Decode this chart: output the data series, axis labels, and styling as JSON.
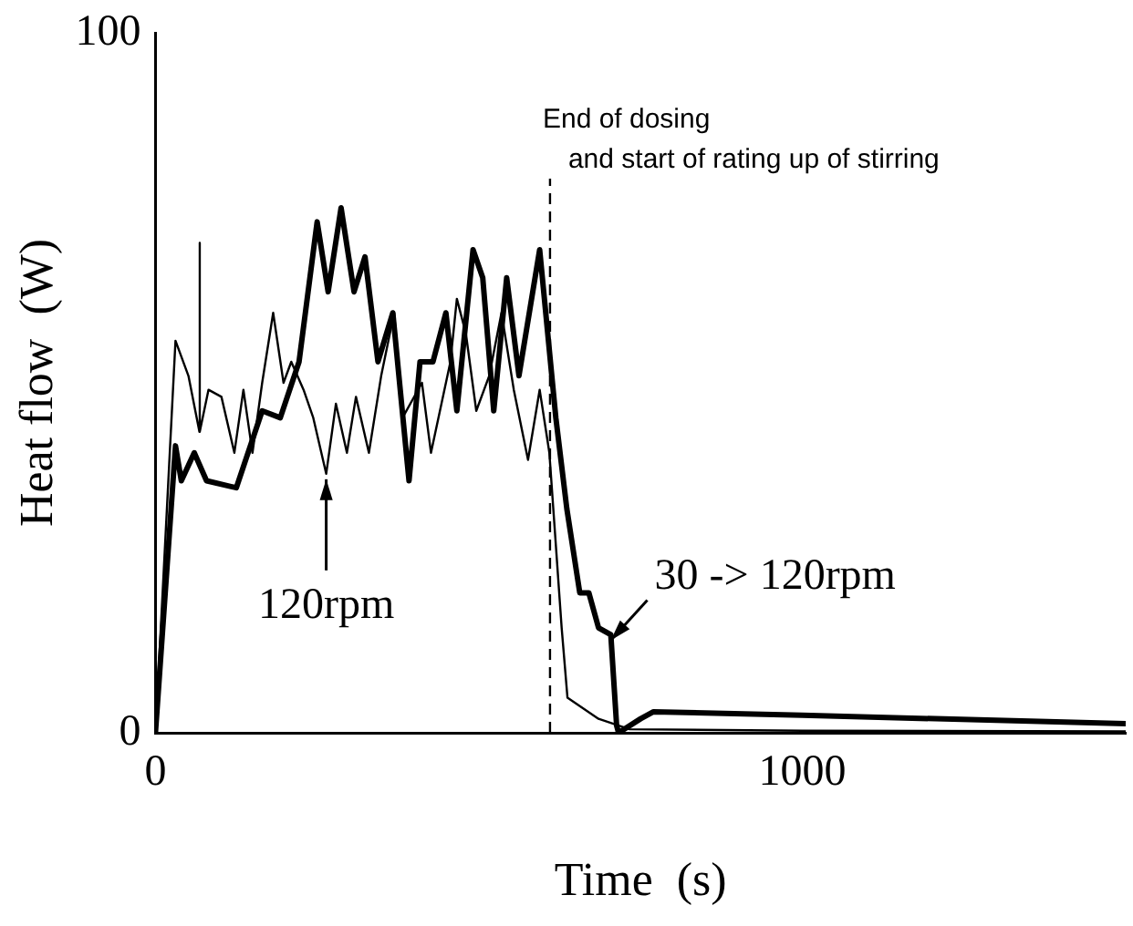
{
  "chart_data": {
    "type": "line",
    "xlabel": "Time  (s)",
    "ylabel": "Heat flow  (W)",
    "xlim": [
      0,
      1500
    ],
    "ylim": [
      0,
      100
    ],
    "xticks": [
      0,
      1000
    ],
    "yticks": [
      0,
      100
    ],
    "grid": false,
    "legend": false,
    "marker": "none",
    "line_style": "solid",
    "series": [
      {
        "color": "#000000",
        "x": [
          0,
          31,
          40,
          60,
          79,
          125,
          165,
          193,
          222,
          250,
          267,
          287,
          307,
          324,
          344,
          367,
          392,
          409,
          429,
          449,
          466,
          491,
          506,
          523,
          543,
          562,
          594,
          619,
          636,
          656,
          670,
          685,
          704,
          713,
          716,
          750,
          770,
          1000,
          1500
        ],
        "values": [
          0,
          41,
          36,
          40,
          36,
          35,
          46,
          45,
          53,
          73,
          63,
          75,
          63,
          68,
          53,
          60,
          36,
          53,
          53,
          60,
          46,
          69,
          65,
          46,
          65,
          51,
          69,
          45,
          32,
          20,
          20,
          15,
          14,
          1,
          0,
          2,
          3,
          2.5,
          1.3
        ]
      },
      {
        "color": "#000000",
        "x": [
          0,
          31,
          51,
          68,
          68,
          69,
          82,
          102,
          122,
          136,
          150,
          165,
          182,
          198,
          210,
          229,
          244,
          264,
          279,
          296,
          310,
          330,
          349,
          369,
          382,
          412,
          426,
          456,
          466,
          480,
          496,
          516,
          535,
          554,
          576,
          594,
          609,
          628,
          637,
          685,
          733,
          1000,
          1500
        ],
        "values": [
          0,
          56,
          51,
          43,
          70,
          43,
          49,
          48,
          40,
          49,
          40,
          50,
          60,
          50,
          53,
          49,
          45,
          37,
          47,
          40,
          48,
          40,
          51,
          60,
          45,
          50,
          40,
          53,
          62,
          57,
          46,
          51,
          60,
          49,
          39,
          49,
          40,
          15,
          5,
          2,
          0.5,
          0.3,
          0.2
        ]
      }
    ],
    "ref_lines": [
      {
        "axis": "x",
        "value": 610,
        "label": "End of dosing\nand start of rating up of stirring",
        "line_style": "dashed",
        "color": "#000000"
      }
    ],
    "annotations": [
      {
        "text": "120rpm",
        "x": 264,
        "y": 37
      },
      {
        "text": "30 -> 120rpm",
        "x": 704,
        "y": 14
      }
    ]
  }
}
